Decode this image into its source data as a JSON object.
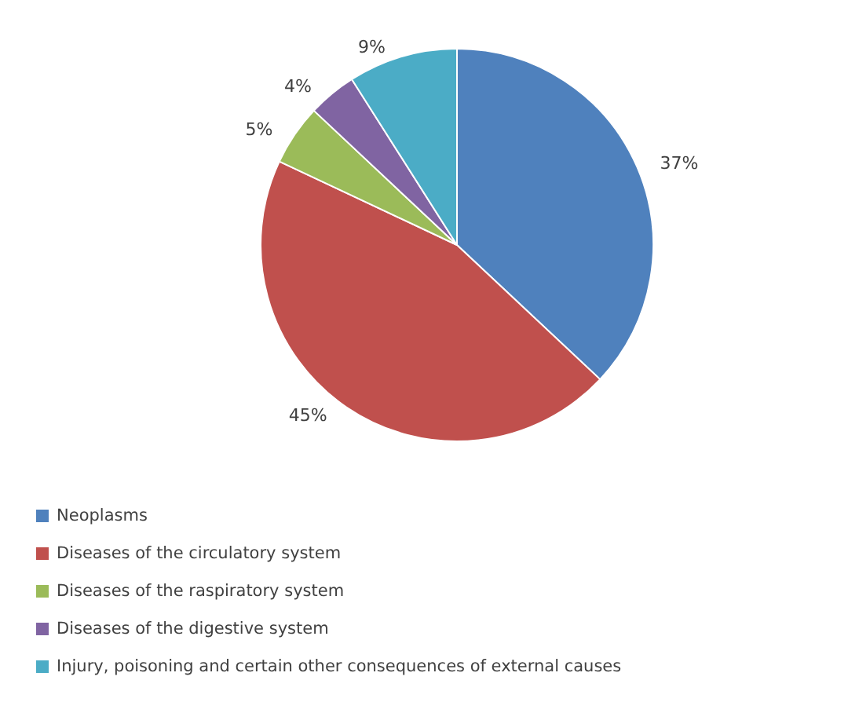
{
  "chart_data": {
    "type": "pie",
    "categories": [
      "Neoplasms",
      "Diseases of the circulatory system",
      "Diseases of the raspiratory system",
      "Diseases of the digestive system",
      "Injury, poisoning and certain other consequences of external causes"
    ],
    "values": [
      37,
      45,
      5,
      4,
      9
    ],
    "colors": [
      "#4f81bd",
      "#c0504d",
      "#9bbb59",
      "#8064a2",
      "#4bacc6"
    ],
    "value_labels": [
      "37%",
      "45%",
      "5%",
      "4%",
      "9%"
    ],
    "legend": "bottom"
  }
}
